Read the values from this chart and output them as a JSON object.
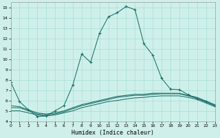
{
  "xlabel": "Humidex (Indice chaleur)",
  "bg_color": "#cff0ea",
  "grid_color": "#a8ddd7",
  "line_color": "#1a6e68",
  "xlim": [
    0,
    23
  ],
  "ylim": [
    4,
    15.5
  ],
  "xticks": [
    0,
    1,
    2,
    3,
    4,
    5,
    6,
    7,
    8,
    9,
    10,
    11,
    12,
    13,
    14,
    15,
    16,
    17,
    18,
    19,
    20,
    21,
    22,
    23
  ],
  "yticks": [
    4,
    5,
    6,
    7,
    8,
    9,
    10,
    11,
    12,
    13,
    14,
    15
  ],
  "main_x": [
    0,
    1,
    2,
    3,
    4,
    5,
    6,
    7,
    8,
    9,
    10,
    11,
    12,
    13,
    14,
    15,
    16,
    17,
    18,
    19,
    20,
    21,
    22,
    23
  ],
  "main_y": [
    7.8,
    5.9,
    5.1,
    4.45,
    4.5,
    5.0,
    5.5,
    7.5,
    10.5,
    9.7,
    12.5,
    14.1,
    14.5,
    15.1,
    14.8,
    11.5,
    10.4,
    8.15,
    7.1,
    7.05,
    6.55,
    6.2,
    5.9,
    5.5
  ],
  "line2_x": [
    0,
    1,
    2,
    3,
    4,
    5,
    6,
    7,
    8,
    9,
    10,
    11,
    12,
    13,
    14,
    15,
    16,
    17,
    18,
    19,
    20,
    21,
    22,
    23
  ],
  "line2_y": [
    5.5,
    5.4,
    5.1,
    4.8,
    4.7,
    4.8,
    5.0,
    5.3,
    5.6,
    5.8,
    6.0,
    6.2,
    6.4,
    6.5,
    6.6,
    6.6,
    6.7,
    6.7,
    6.7,
    6.7,
    6.5,
    6.3,
    5.95,
    5.6
  ],
  "line3_x": [
    0,
    1,
    2,
    3,
    4,
    5,
    6,
    7,
    8,
    9,
    10,
    11,
    12,
    13,
    14,
    15,
    16,
    17,
    18,
    19,
    20,
    21,
    22,
    23
  ],
  "line3_y": [
    5.3,
    5.3,
    5.0,
    4.7,
    4.6,
    4.7,
    4.9,
    5.2,
    5.5,
    5.7,
    5.9,
    6.1,
    6.3,
    6.4,
    6.5,
    6.5,
    6.6,
    6.65,
    6.65,
    6.65,
    6.45,
    6.2,
    5.85,
    5.5
  ],
  "line4_x": [
    0,
    1,
    2,
    3,
    4,
    5,
    6,
    7,
    8,
    9,
    10,
    11,
    12,
    13,
    14,
    15,
    16,
    17,
    18,
    19,
    20,
    21,
    22,
    23
  ],
  "line4_y": [
    5.0,
    5.0,
    4.8,
    4.6,
    4.5,
    4.6,
    4.8,
    5.0,
    5.3,
    5.5,
    5.7,
    5.9,
    6.0,
    6.15,
    6.25,
    6.3,
    6.4,
    6.45,
    6.45,
    6.45,
    6.3,
    6.1,
    5.75,
    5.4
  ]
}
